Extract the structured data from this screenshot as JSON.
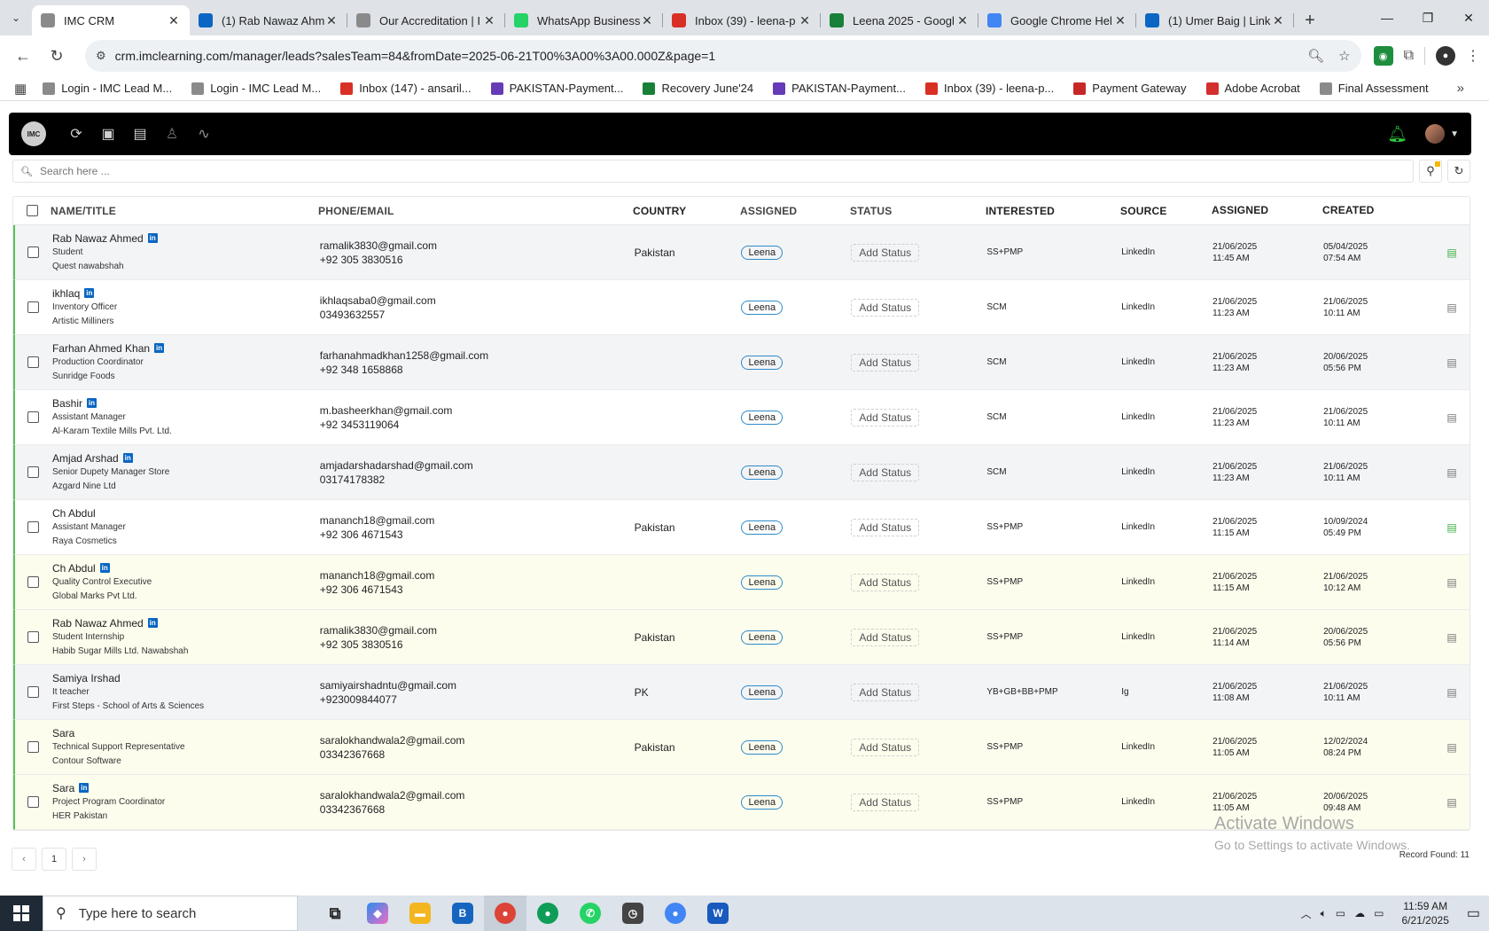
{
  "browser": {
    "tabs": [
      {
        "title": "IMC CRM",
        "icon": "imc-icon",
        "color": "#8a8a8a",
        "active": true
      },
      {
        "title": "(1) Rab Nawaz Ahm",
        "icon": "linkedin-icon",
        "color": "#0a66c2"
      },
      {
        "title": "Our Accreditation | I",
        "icon": "imc-icon",
        "color": "#8a8a8a"
      },
      {
        "title": "WhatsApp Business",
        "icon": "whatsapp-icon",
        "color": "#25d366"
      },
      {
        "title": "Inbox (39) - leena-p",
        "icon": "gmail-icon",
        "color": "#d93025"
      },
      {
        "title": "Leena 2025 - Googl",
        "icon": "sheets-icon",
        "color": "#188038"
      },
      {
        "title": "Google Chrome Hel",
        "icon": "google-icon",
        "color": "#4285f4"
      },
      {
        "title": "(1) Umer Baig | Link",
        "icon": "linkedin-icon",
        "color": "#0a66c2"
      }
    ],
    "url": "crm.imclearning.com/manager/leads?salesTeam=84&fromDate=2025-06-21T00%3A00%3A00.000Z&page=1",
    "bookmarks": [
      {
        "label": "Login - IMC Lead M...",
        "icon": "imc-icon",
        "color": "#8a8a8a"
      },
      {
        "label": "Login - IMC Lead M...",
        "icon": "imc-icon",
        "color": "#8a8a8a"
      },
      {
        "label": "Inbox (147) - ansaril...",
        "icon": "gmail-icon",
        "color": "#d93025"
      },
      {
        "label": "PAKISTAN-Payment...",
        "icon": "forms-icon",
        "color": "#673ab7"
      },
      {
        "label": "Recovery June'24",
        "icon": "sheets-icon",
        "color": "#188038"
      },
      {
        "label": "PAKISTAN-Payment...",
        "icon": "forms-icon",
        "color": "#673ab7"
      },
      {
        "label": "Inbox (39) - leena-p...",
        "icon": "gmail-icon",
        "color": "#d93025"
      },
      {
        "label": "Payment Gateway",
        "icon": "payment-icon",
        "color": "#c62828"
      },
      {
        "label": "Adobe Acrobat",
        "icon": "acrobat-icon",
        "color": "#d32f2f"
      },
      {
        "label": "Final Assessment",
        "icon": "imc-icon",
        "color": "#8a8a8a"
      }
    ]
  },
  "app": {
    "logo_text": "IMC",
    "search_placeholder": "Search here ..."
  },
  "table": {
    "headers": {
      "name": "NAME/TITLE",
      "phone": "PHONE/EMAIL",
      "country": "COUNTRY",
      "assigned": "ASSIGNED",
      "status": "STATUS",
      "interested": "INTERESTED",
      "source": "SOURCE",
      "assigned_date": "ASSIGNED",
      "created": "CREATED"
    },
    "rows": [
      {
        "name": "Rab Nawaz Ahmed",
        "linkedin": true,
        "title": "Student",
        "company": "Quest nawabshah",
        "email": "ramalik3830@gmail.com",
        "phone": "+92 305 3830516",
        "country": "Pakistan",
        "assigned": "Leena",
        "status": "Add Status",
        "interested": "SS+PMP",
        "source": "LinkedIn",
        "assigned_date": "21/06/2025",
        "assigned_time": "11:45 AM",
        "created_date": "05/04/2025",
        "created_time": "07:54 AM",
        "bg": "grey",
        "doc_green": true
      },
      {
        "name": "ikhlaq",
        "linkedin": true,
        "title": "Inventory Officer",
        "company": "Artistic Milliners",
        "email": "ikhlaqsaba0@gmail.com",
        "phone": "03493632557",
        "country": "",
        "assigned": "Leena",
        "status": "Add Status",
        "interested": "SCM",
        "source": "LinkedIn",
        "assigned_date": "21/06/2025",
        "assigned_time": "11:23 AM",
        "created_date": "21/06/2025",
        "created_time": "10:11 AM",
        "bg": "white",
        "doc_green": false
      },
      {
        "name": "Farhan Ahmed Khan",
        "linkedin": true,
        "title": "Production Coordinator",
        "company": "Sunridge Foods",
        "email": "farhanahmadkhan1258@gmail.com",
        "phone": "+92 348 1658868",
        "country": "",
        "assigned": "Leena",
        "status": "Add Status",
        "interested": "SCM",
        "source": "LinkedIn",
        "assigned_date": "21/06/2025",
        "assigned_time": "11:23 AM",
        "created_date": "20/06/2025",
        "created_time": "05:56 PM",
        "bg": "grey",
        "doc_green": false
      },
      {
        "name": "Bashir",
        "linkedin": true,
        "title": "Assistant Manager",
        "company": "Al-Karam Textile Mills Pvt. Ltd.",
        "email": "m.basheerkhan@gmail.com",
        "phone": "+92 3453119064",
        "country": "",
        "assigned": "Leena",
        "status": "Add Status",
        "interested": "SCM",
        "source": "LinkedIn",
        "assigned_date": "21/06/2025",
        "assigned_time": "11:23 AM",
        "created_date": "21/06/2025",
        "created_time": "10:11 AM",
        "bg": "white",
        "doc_green": false
      },
      {
        "name": "Amjad Arshad",
        "linkedin": true,
        "title": "Senior Dupety Manager Store",
        "company": "Azgard Nine Ltd",
        "email": "amjadarshadarshad@gmail.com",
        "phone": "03174178382",
        "country": "",
        "assigned": "Leena",
        "status": "Add Status",
        "interested": "SCM",
        "source": "LinkedIn",
        "assigned_date": "21/06/2025",
        "assigned_time": "11:23 AM",
        "created_date": "21/06/2025",
        "created_time": "10:11 AM",
        "bg": "grey",
        "doc_green": false
      },
      {
        "name": "Ch Abdul",
        "linkedin": false,
        "title": "Assistant Manager",
        "company": "Raya Cosmetics",
        "email": "mananch18@gmail.com",
        "phone": "+92 306 4671543",
        "country": "Pakistan",
        "assigned": "Leena",
        "status": "Add Status",
        "interested": "SS+PMP",
        "source": "LinkedIn",
        "assigned_date": "21/06/2025",
        "assigned_time": "11:15 AM",
        "created_date": "10/09/2024",
        "created_time": "05:49 PM",
        "bg": "white",
        "doc_green": true
      },
      {
        "name": "Ch Abdul",
        "linkedin": true,
        "title": "Quality Control Executive",
        "company": "Global Marks Pvt Ltd.",
        "email": "mananch18@gmail.com",
        "phone": "+92 306 4671543",
        "country": "",
        "assigned": "Leena",
        "status": "Add Status",
        "interested": "SS+PMP",
        "source": "LinkedIn",
        "assigned_date": "21/06/2025",
        "assigned_time": "11:15 AM",
        "created_date": "21/06/2025",
        "created_time": "10:12 AM",
        "bg": "yellow",
        "doc_green": false
      },
      {
        "name": "Rab Nawaz Ahmed",
        "linkedin": true,
        "title": "Student Internship",
        "company": "Habib Sugar Mills Ltd. Nawabshah",
        "email": "ramalik3830@gmail.com",
        "phone": "+92 305 3830516",
        "country": "Pakistan",
        "assigned": "Leena",
        "status": "Add Status",
        "interested": "SS+PMP",
        "source": "LinkedIn",
        "assigned_date": "21/06/2025",
        "assigned_time": "11:14 AM",
        "created_date": "20/06/2025",
        "created_time": "05:56 PM",
        "bg": "yellow",
        "doc_green": false
      },
      {
        "name": "Samiya Irshad",
        "linkedin": false,
        "title": "It teacher",
        "company": "First Steps - School of Arts & Sciences",
        "email": "samiyairshadntu@gmail.com",
        "phone": "+923009844077",
        "country": "PK",
        "assigned": "Leena",
        "status": "Add Status",
        "interested": "YB+GB+BB+PMP",
        "source": "Ig",
        "assigned_date": "21/06/2025",
        "assigned_time": "11:08 AM",
        "created_date": "21/06/2025",
        "created_time": "10:11 AM",
        "bg": "grey",
        "doc_green": false
      },
      {
        "name": "Sara",
        "linkedin": false,
        "title": "Technical Support Representative",
        "company": "Contour Software",
        "email": "saralokhandwala2@gmail.com",
        "phone": "03342367668",
        "country": "Pakistan",
        "assigned": "Leena",
        "status": "Add Status",
        "interested": "SS+PMP",
        "source": "LinkedIn",
        "assigned_date": "21/06/2025",
        "assigned_time": "11:05 AM",
        "created_date": "12/02/2024",
        "created_time": "08:24 PM",
        "bg": "yellow",
        "doc_green": false
      },
      {
        "name": "Sara",
        "linkedin": true,
        "title": "Project Program Coordinator",
        "company": "HER Pakistan",
        "email": "saralokhandwala2@gmail.com",
        "phone": "03342367668",
        "country": "",
        "assigned": "Leena",
        "status": "Add Status",
        "interested": "SS+PMP",
        "source": "LinkedIn",
        "assigned_date": "21/06/2025",
        "assigned_time": "11:05 AM",
        "created_date": "20/06/2025",
        "created_time": "09:48 AM",
        "bg": "yellow",
        "doc_green": false
      }
    ]
  },
  "pagination": {
    "prev": "‹",
    "page": "1",
    "next": "›"
  },
  "records_found": "Record Found: 11",
  "watermark": {
    "line1": "Activate Windows",
    "line2": "Go to Settings to activate Windows."
  },
  "taskbar": {
    "search_placeholder": "Type here to search",
    "time": "11:59 AM",
    "date": "6/21/2025"
  }
}
